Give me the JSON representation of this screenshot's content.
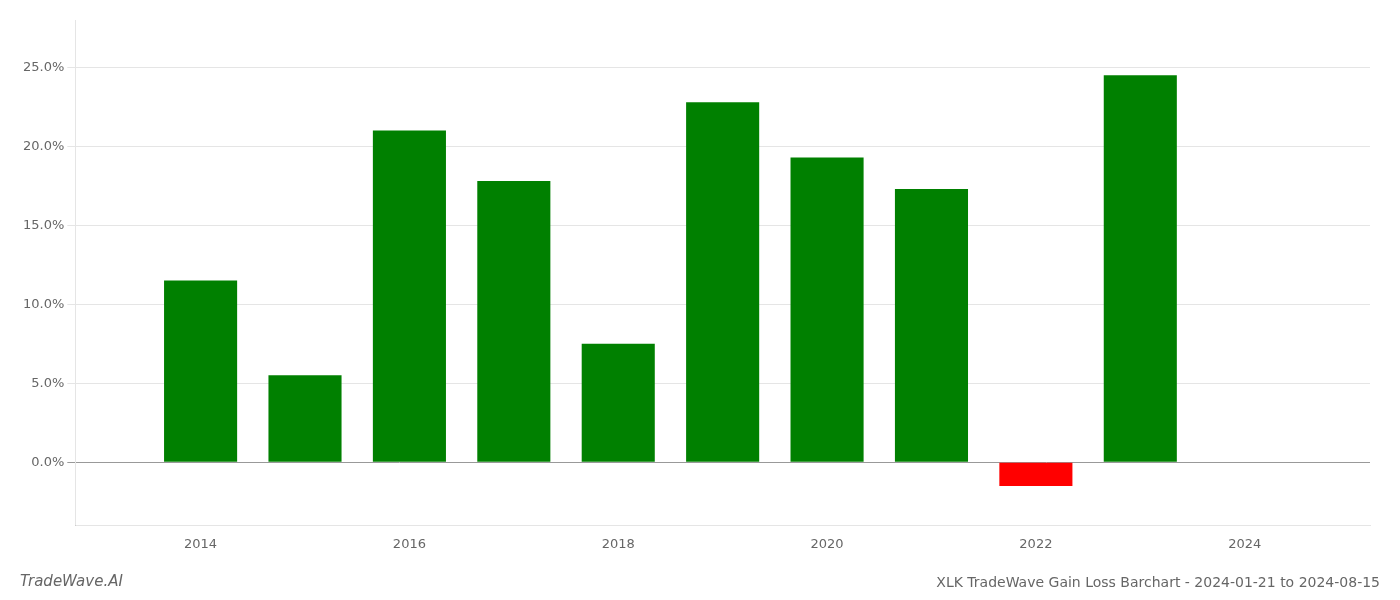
{
  "chart_data": {
    "type": "bar",
    "title": "XLK TradeWave Gain Loss Barchart - 2024-01-21 to 2024-08-15",
    "annotations": [
      "TradeWave.AI"
    ],
    "x": [
      2014,
      2015,
      2016,
      2017,
      2018,
      2019,
      2020,
      2021,
      2022,
      2023
    ],
    "values": [
      0.115,
      0.055,
      0.21,
      0.178,
      0.075,
      0.228,
      0.193,
      0.173,
      -0.015,
      0.245
    ],
    "colors": [
      "#008000",
      "#008000",
      "#008000",
      "#008000",
      "#008000",
      "#008000",
      "#008000",
      "#008000",
      "#ff0000",
      "#008000"
    ],
    "xlim": [
      2012.8,
      2025.2
    ],
    "xticks": [
      2014,
      2016,
      2018,
      2020,
      2022,
      2024
    ],
    "ylim": [
      -0.04,
      0.28
    ],
    "yticks": [
      {
        "value": 0,
        "label": "0.0%"
      },
      {
        "value": 0.05,
        "label": "5.0%"
      },
      {
        "value": 0.1,
        "label": "10.0%"
      },
      {
        "value": 0.15,
        "label": "15.0%"
      },
      {
        "value": 0.2,
        "label": "20.0%"
      },
      {
        "value": 0.25,
        "label": "25.0%"
      }
    ],
    "grid": true
  }
}
